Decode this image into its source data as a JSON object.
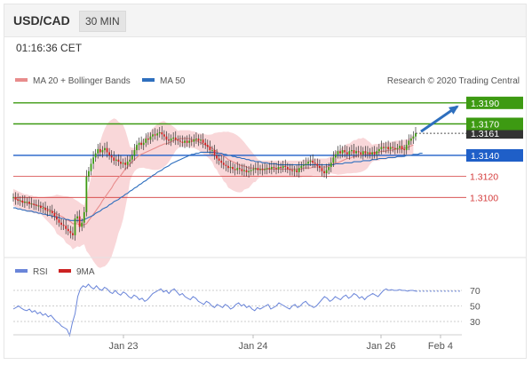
{
  "header": {
    "symbol": "USD/CAD",
    "timeframe": "30 MIN"
  },
  "timestamp": "01:16:36 CET",
  "legend": {
    "ma20": "MA 20 + Bollinger Bands",
    "ma50": "MA 50",
    "credit": "Research © 2020 Trading Central"
  },
  "rsi_legend": {
    "rsi": "RSI",
    "ma9": "9MA"
  },
  "colors": {
    "resistance": "#3d9a12",
    "pivot": "#1f5fc8",
    "support": "#d43b3b",
    "ma20": "#e88c8c",
    "ma50": "#2e6fbe",
    "band": "#f7c9cc",
    "bull": "#3d9a12",
    "bear": "#cc2222",
    "rsi": "#6a85d9",
    "last_price_bg": "#333333"
  },
  "chart_data": {
    "type": "candlestick",
    "x_labels": [
      "Jan 23",
      "Jan 24",
      "Jan 26",
      "Feb 4"
    ],
    "y_range": [
      1.3058,
      1.32
    ],
    "last_price": "1.3161",
    "levels": [
      {
        "label": "1.3190",
        "value": 1.319,
        "kind": "resistance"
      },
      {
        "label": "1.3170",
        "value": 1.317,
        "kind": "resistance"
      },
      {
        "label": "1.3140",
        "value": 1.314,
        "kind": "pivot"
      },
      {
        "label": "1.3120",
        "value": 1.312,
        "kind": "support"
      },
      {
        "label": "1.3100",
        "value": 1.31,
        "kind": "support"
      }
    ],
    "closes": [
      1.31,
      1.3098,
      1.3097,
      1.3097,
      1.3095,
      1.3096,
      1.3096,
      1.3094,
      1.3094,
      1.3093,
      1.3092,
      1.3092,
      1.309,
      1.309,
      1.3088,
      1.3087,
      1.3087,
      1.3085,
      1.3082,
      1.3079,
      1.3076,
      1.3074,
      1.3073,
      1.307,
      1.3068,
      1.3066,
      1.3064,
      1.308,
      1.3082,
      1.3072,
      1.3076,
      1.3086,
      1.312,
      1.3125,
      1.3132,
      1.3138,
      1.3142,
      1.3146,
      1.3143,
      1.3145,
      1.3147,
      1.3143,
      1.314,
      1.3138,
      1.3135,
      1.3136,
      1.3134,
      1.3132,
      1.3133,
      1.3131,
      1.3134,
      1.3136,
      1.314,
      1.3145,
      1.315,
      1.3152,
      1.315,
      1.3152,
      1.3156,
      1.3155,
      1.3158,
      1.316,
      1.3159,
      1.3161,
      1.3162,
      1.316,
      1.3158,
      1.3155,
      1.3154,
      1.3156,
      1.3157,
      1.3155,
      1.3154,
      1.3153,
      1.3152,
      1.3154,
      1.3152,
      1.3154,
      1.3153,
      1.3155,
      1.3156,
      1.3154,
      1.3155,
      1.3152,
      1.315,
      1.3148,
      1.3145,
      1.3145,
      1.314,
      1.3137,
      1.3135,
      1.3133,
      1.3131,
      1.313,
      1.3128,
      1.3129,
      1.3127,
      1.3126,
      1.3128,
      1.3127,
      1.3125,
      1.3126,
      1.3124,
      1.3125,
      1.3126,
      1.3127,
      1.3128,
      1.3126,
      1.3127,
      1.3126,
      1.3127,
      1.3128,
      1.3127,
      1.3129,
      1.3128,
      1.3127,
      1.3129,
      1.3128,
      1.313,
      1.3129,
      1.3127,
      1.3126,
      1.3125,
      1.3126,
      1.3124,
      1.3128,
      1.313,
      1.3131,
      1.3132,
      1.3134,
      1.3135,
      1.3133,
      1.3132,
      1.313,
      1.3128,
      1.3125,
      1.3123,
      1.3126,
      1.3129,
      1.3133,
      1.3138,
      1.3141,
      1.3144,
      1.3142,
      1.3145,
      1.3143,
      1.3141,
      1.3144,
      1.3145,
      1.3142,
      1.3144,
      1.3143,
      1.3141,
      1.3144,
      1.3142,
      1.3143,
      1.3141,
      1.3143,
      1.3141,
      1.3144,
      1.3146,
      1.3148,
      1.3147,
      1.3148,
      1.3146,
      1.3148,
      1.3147,
      1.3146,
      1.3147,
      1.3149,
      1.3146,
      1.3145,
      1.315,
      1.3154,
      1.3156,
      1.3158,
      1.3161
    ],
    "ma20": [
      1.31,
      1.3099,
      1.3098,
      1.3097,
      1.3096,
      1.3095,
      1.3095,
      1.3094,
      1.3094,
      1.3093,
      1.3093,
      1.3092,
      1.3092,
      1.3091,
      1.309,
      1.3089,
      1.3088,
      1.3087,
      1.3086,
      1.3084,
      1.3083,
      1.3082,
      1.3081,
      1.3079,
      1.3078,
      1.3077,
      1.3075,
      1.3075,
      1.3075,
      1.3074,
      1.3074,
      1.3074,
      1.3075,
      1.3078,
      1.3081,
      1.3084,
      1.3087,
      1.309,
      1.3093,
      1.3097,
      1.31,
      1.3103,
      1.3106,
      1.3109,
      1.3113,
      1.3116,
      1.3119,
      1.3121,
      1.3124,
      1.3127,
      1.3129,
      1.3132,
      1.3134,
      1.3136,
      1.3138,
      1.314,
      1.3141,
      1.3142,
      1.3143,
      1.3144,
      1.3145,
      1.3146,
      1.3147,
      1.3148,
      1.3149,
      1.315,
      1.3151,
      1.3151,
      1.3152,
      1.3153,
      1.3154,
      1.3155,
      1.3155,
      1.3156,
      1.3156,
      1.3156,
      1.3156,
      1.3156,
      1.3155,
      1.3155,
      1.3154,
      1.3153,
      1.3152,
      1.3151,
      1.315,
      1.3149,
      1.3148,
      1.3147,
      1.3145,
      1.3144,
      1.3142,
      1.3141,
      1.3139,
      1.3138,
      1.3136,
      1.3135,
      1.3134,
      1.3133,
      1.3132,
      1.3131,
      1.313,
      1.313,
      1.3129,
      1.3128,
      1.3128,
      1.3128,
      1.3127,
      1.3127,
      1.3127,
      1.3127,
      1.3127,
      1.3127,
      1.3127,
      1.3127,
      1.3127,
      1.3127,
      1.3127,
      1.3127,
      1.3127,
      1.3127,
      1.3127,
      1.3127,
      1.3127,
      1.3127,
      1.3127,
      1.3127,
      1.3127,
      1.3128,
      1.3128,
      1.3128,
      1.3128,
      1.3129,
      1.3129,
      1.3129,
      1.3129,
      1.3129,
      1.3129,
      1.3129,
      1.313,
      1.3131,
      1.3132,
      1.3133,
      1.3133,
      1.3134,
      1.3135,
      1.3136,
      1.3137,
      1.3137,
      1.3138,
      1.3139,
      1.3139,
      1.314,
      1.314,
      1.3141,
      1.3141,
      1.3141,
      1.3142,
      1.3142,
      1.3143,
      1.3143,
      1.3143,
      1.3144,
      1.3144,
      1.3144,
      1.3145,
      1.3145,
      1.3145,
      1.3146,
      1.3146,
      1.3146,
      1.3146,
      1.3147,
      1.3147,
      1.3148,
      1.3149,
      1.315
    ],
    "ma50": [
      1.309,
      1.309,
      1.3089,
      1.3089,
      1.3088,
      1.3088,
      1.3087,
      1.3087,
      1.3087,
      1.3086,
      1.3086,
      1.3085,
      1.3085,
      1.3084,
      1.3084,
      1.3083,
      1.3083,
      1.3082,
      1.3082,
      1.3081,
      1.3081,
      1.308,
      1.308,
      1.3079,
      1.3079,
      1.3078,
      1.3078,
      1.3078,
      1.3078,
      1.3078,
      1.3078,
      1.3079,
      1.308,
      1.3081,
      1.3082,
      1.3083,
      1.3085,
      1.3086,
      1.3087,
      1.3089,
      1.309,
      1.3091,
      1.3093,
      1.3094,
      1.3096,
      1.3097,
      1.3098,
      1.31,
      1.3101,
      1.3103,
      1.3104,
      1.3106,
      1.3107,
      1.3109,
      1.311,
      1.3112,
      1.3113,
      1.3115,
      1.3116,
      1.3118,
      1.3119,
      1.3121,
      1.3122,
      1.3124,
      1.3125,
      1.3126,
      1.3128,
      1.3129,
      1.313,
      1.3132,
      1.3133,
      1.3134,
      1.3135,
      1.3136,
      1.3137,
      1.3138,
      1.3139,
      1.314,
      1.3141,
      1.3141,
      1.3142,
      1.3142,
      1.3143,
      1.3143,
      1.3143,
      1.3143,
      1.3143,
      1.3143,
      1.3143,
      1.3142,
      1.3142,
      1.3142,
      1.3141,
      1.3141,
      1.314,
      1.314,
      1.3139,
      1.3139,
      1.3138,
      1.3138,
      1.3137,
      1.3137,
      1.3136,
      1.3136,
      1.3135,
      1.3135,
      1.3134,
      1.3134,
      1.3134,
      1.3133,
      1.3133,
      1.3133,
      1.3132,
      1.3132,
      1.3132,
      1.3132,
      1.3131,
      1.3131,
      1.3131,
      1.3131,
      1.3131,
      1.3131,
      1.3131,
      1.3131,
      1.3131,
      1.3131,
      1.3131,
      1.3131,
      1.3131,
      1.3131,
      1.3131,
      1.3131,
      1.3131,
      1.3131,
      1.3131,
      1.3131,
      1.3131,
      1.3131,
      1.3131,
      1.3131,
      1.3131,
      1.3132,
      1.3132,
      1.3132,
      1.3132,
      1.3133,
      1.3133,
      1.3133,
      1.3133,
      1.3134,
      1.3134,
      1.3134,
      1.3134,
      1.3135,
      1.3135,
      1.3135,
      1.3135,
      1.3136,
      1.3136,
      1.3136,
      1.3137,
      1.3137,
      1.3137,
      1.3137,
      1.3138,
      1.3138,
      1.3138,
      1.3138,
      1.3139,
      1.3139,
      1.3139,
      1.3139,
      1.314,
      1.314,
      1.314,
      1.3141,
      1.3141,
      1.3141,
      1.3142,
      1.3142
    ],
    "rsi": {
      "y_ticks": [
        "70",
        "50",
        "30"
      ],
      "values": [
        46,
        48,
        50,
        47,
        45,
        44,
        46,
        42,
        44,
        40,
        42,
        38,
        40,
        36,
        38,
        34,
        30,
        28,
        24,
        22,
        20,
        12,
        28,
        40,
        62,
        72,
        76,
        74,
        78,
        74,
        72,
        76,
        72,
        70,
        74,
        72,
        68,
        66,
        70,
        66,
        64,
        68,
        66,
        62,
        60,
        64,
        62,
        58,
        60,
        56,
        58,
        62,
        66,
        68,
        70,
        72,
        68,
        70,
        66,
        70,
        72,
        68,
        64,
        66,
        62,
        60,
        58,
        62,
        60,
        56,
        54,
        52,
        56,
        54,
        50,
        48,
        52,
        50,
        48,
        52,
        50,
        46,
        48,
        52,
        54,
        50,
        52,
        48,
        50,
        46,
        44,
        48,
        46,
        48,
        50,
        52,
        46,
        48,
        50,
        54,
        52,
        50,
        48,
        46,
        50,
        52,
        48,
        50,
        54,
        56,
        52,
        50,
        48,
        50,
        54,
        58,
        62,
        60,
        56,
        58,
        62,
        60,
        58,
        62,
        64,
        60,
        62,
        66,
        64,
        60,
        62,
        58,
        62,
        64,
        66,
        64,
        62,
        66,
        70,
        72,
        70,
        71,
        70,
        70,
        71,
        70,
        70,
        69,
        70,
        70,
        69
      ]
    }
  }
}
